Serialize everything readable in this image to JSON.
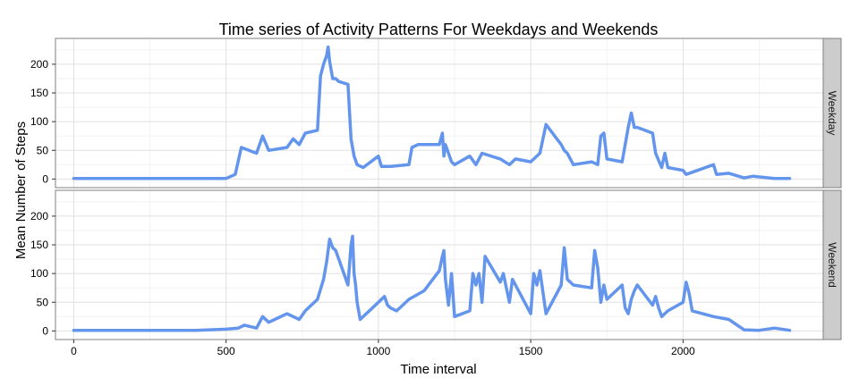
{
  "chart_data": {
    "type": "line",
    "title": "Time series of Activity Patterns For Weekdays and Weekends",
    "xlabel": "Time interval",
    "ylabel": "Mean Number of Steps",
    "xlim": [
      -60,
      2460
    ],
    "ylim": [
      -15,
      245
    ],
    "x_ticks": [
      0,
      500,
      1000,
      1500,
      2000
    ],
    "y_ticks": [
      0,
      50,
      100,
      150,
      200
    ],
    "grid": true,
    "line_color": "#6495ED",
    "panels": [
      {
        "name": "Weekday",
        "x": [
          0,
          400,
          500,
          530,
          550,
          600,
          620,
          640,
          700,
          720,
          740,
          760,
          800,
          810,
          820,
          830,
          835,
          840,
          850,
          860,
          870,
          900,
          910,
          920,
          930,
          950,
          1000,
          1010,
          1040,
          1100,
          1110,
          1130,
          1200,
          1210,
          1215,
          1220,
          1230,
          1240,
          1250,
          1300,
          1320,
          1340,
          1400,
          1430,
          1450,
          1500,
          1530,
          1550,
          1600,
          1610,
          1620,
          1640,
          1700,
          1720,
          1730,
          1740,
          1750,
          1800,
          1820,
          1830,
          1840,
          1850,
          1900,
          1910,
          1930,
          1940,
          1950,
          2000,
          2010,
          2100,
          2110,
          2150,
          2200,
          2230,
          2300,
          2350
        ],
        "y": [
          1,
          1,
          1,
          8,
          55,
          45,
          75,
          50,
          55,
          70,
          60,
          80,
          85,
          180,
          200,
          215,
          230,
          205,
          175,
          175,
          170,
          165,
          70,
          40,
          25,
          20,
          40,
          22,
          22,
          25,
          55,
          60,
          60,
          80,
          40,
          60,
          45,
          30,
          25,
          40,
          25,
          45,
          35,
          25,
          35,
          30,
          45,
          95,
          60,
          50,
          45,
          25,
          30,
          25,
          75,
          80,
          35,
          30,
          90,
          115,
          90,
          90,
          80,
          45,
          20,
          45,
          20,
          15,
          8,
          25,
          8,
          10,
          2,
          5,
          1,
          1
        ]
      },
      {
        "name": "Weekend",
        "x": [
          0,
          400,
          500,
          540,
          560,
          600,
          620,
          640,
          660,
          700,
          720,
          740,
          760,
          800,
          820,
          830,
          840,
          850,
          860,
          900,
          910,
          915,
          920,
          925,
          930,
          940,
          1000,
          1020,
          1030,
          1040,
          1060,
          1100,
          1150,
          1200,
          1210,
          1215,
          1220,
          1230,
          1240,
          1250,
          1300,
          1310,
          1320,
          1330,
          1340,
          1350,
          1400,
          1410,
          1430,
          1440,
          1500,
          1510,
          1520,
          1530,
          1550,
          1600,
          1610,
          1620,
          1640,
          1700,
          1710,
          1720,
          1730,
          1740,
          1750,
          1800,
          1810,
          1820,
          1830,
          1840,
          1850,
          1900,
          1910,
          1920,
          1930,
          1950,
          2000,
          2010,
          2020,
          2030,
          2100,
          2150,
          2200,
          2250,
          2300,
          2350
        ],
        "y": [
          1,
          1,
          3,
          5,
          10,
          5,
          25,
          15,
          20,
          30,
          25,
          20,
          35,
          55,
          90,
          120,
          160,
          145,
          140,
          80,
          150,
          165,
          100,
          80,
          50,
          20,
          50,
          60,
          45,
          40,
          35,
          55,
          70,
          105,
          130,
          140,
          90,
          45,
          100,
          25,
          35,
          100,
          80,
          100,
          50,
          130,
          85,
          100,
          50,
          90,
          30,
          100,
          80,
          105,
          30,
          80,
          145,
          90,
          80,
          75,
          140,
          110,
          50,
          80,
          55,
          80,
          40,
          30,
          55,
          70,
          80,
          45,
          60,
          40,
          25,
          35,
          50,
          85,
          65,
          35,
          25,
          20,
          2,
          1,
          5,
          1
        ]
      }
    ]
  }
}
